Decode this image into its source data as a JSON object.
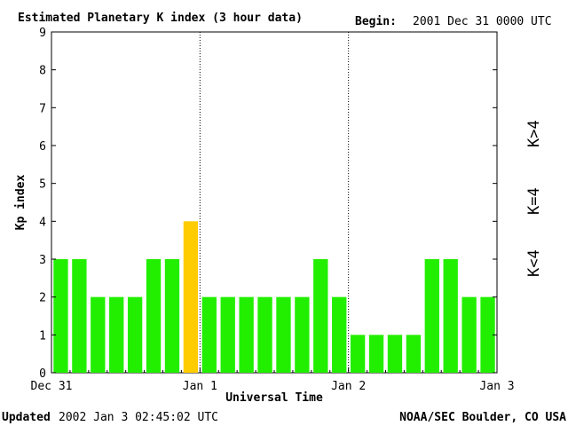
{
  "header": {
    "title": "Estimated Planetary K index (3 hour data)",
    "begin_label": "Begin:",
    "begin_value": "2001 Dec 31 0000 UTC"
  },
  "footer": {
    "updated_label": "Updated",
    "updated_value": "2002 Jan  3 02:45:02 UTC",
    "source": "NOAA/SEC Boulder, CO USA"
  },
  "legend": {
    "items": [
      {
        "label": "K<4",
        "color": "#22ee00"
      },
      {
        "label": "K=4",
        "color": "#ffcc00"
      },
      {
        "label": "K>4",
        "color": "#ee2200"
      }
    ]
  },
  "chart_data": {
    "type": "bar",
    "title": "Estimated Planetary K index (3 hour data)",
    "xlabel": "Universal Time",
    "ylabel": "Kp index",
    "ylim": [
      0,
      9
    ],
    "yticks": [
      0,
      1,
      2,
      3,
      4,
      5,
      6,
      7,
      8,
      9
    ],
    "xticks": [
      "Dec 31",
      "Jan 1",
      "Jan 2",
      "Jan 3"
    ],
    "interval_hours": 3,
    "values": [
      3,
      3,
      2,
      2,
      2,
      3,
      3,
      4,
      2,
      2,
      2,
      2,
      2,
      2,
      3,
      2,
      1,
      1,
      1,
      1,
      3,
      3,
      2,
      2
    ],
    "colors": {
      "below": "#22ee00",
      "equal": "#ffcc00",
      "above": "#ee2200"
    },
    "day_separators": [
      "Jan 1",
      "Jan 2"
    ],
    "grid": false
  }
}
